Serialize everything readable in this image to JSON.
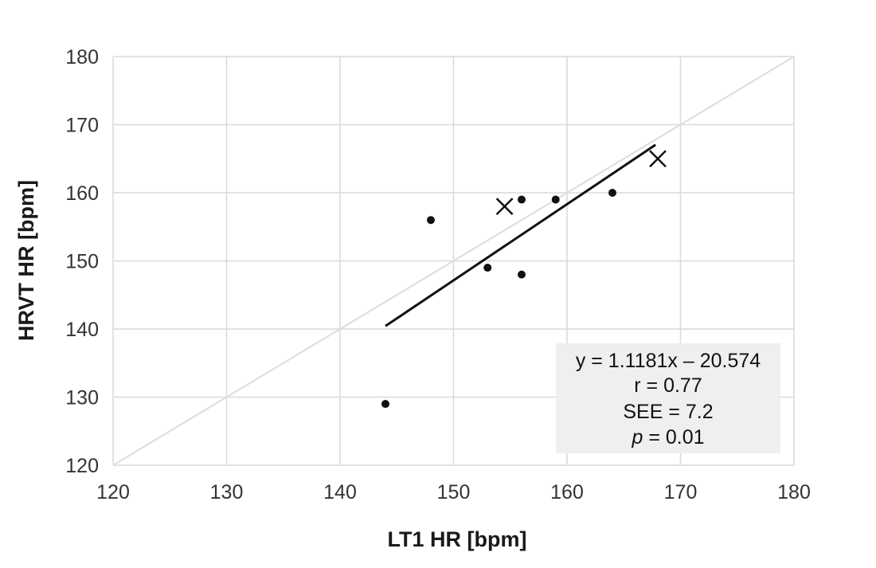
{
  "chart_data": {
    "type": "scatter",
    "xlabel": "LT1 HR [bpm]",
    "ylabel": "HRVT HR [bpm]",
    "xlim": [
      120,
      180
    ],
    "ylim": [
      120,
      180
    ],
    "x_ticks": [
      "120",
      "130",
      "140",
      "150",
      "160",
      "170",
      "180"
    ],
    "y_ticks": [
      "120",
      "130",
      "140",
      "150",
      "160",
      "170",
      "180"
    ],
    "grid": true,
    "series": [
      {
        "marker": "dot",
        "color": "#111111",
        "points": [
          {
            "x": 144,
            "y": 129
          },
          {
            "x": 148,
            "y": 156
          },
          {
            "x": 153,
            "y": 149
          },
          {
            "x": 156,
            "y": 159
          },
          {
            "x": 156,
            "y": 148
          },
          {
            "x": 159,
            "y": 159
          },
          {
            "x": 164,
            "y": 160
          }
        ]
      },
      {
        "marker": "cross",
        "color": "#111111",
        "points": [
          {
            "x": 154.5,
            "y": 158
          },
          {
            "x": 168,
            "y": 165
          }
        ]
      }
    ],
    "identity_line": {
      "from": [
        120,
        120
      ],
      "to": [
        180,
        180
      ],
      "color": "#dddddd"
    },
    "regression_line": {
      "slope": 1.1181,
      "intercept": -20.574,
      "x_range": [
        144,
        167.8
      ],
      "color": "#111111"
    },
    "annotation": {
      "equation": "y = 1.1181x – 20.574",
      "r": "r = 0.77",
      "see": "SEE = 7.2",
      "p_symbol": "p",
      "p_value": " = 0.01",
      "background": "#efefef"
    }
  }
}
